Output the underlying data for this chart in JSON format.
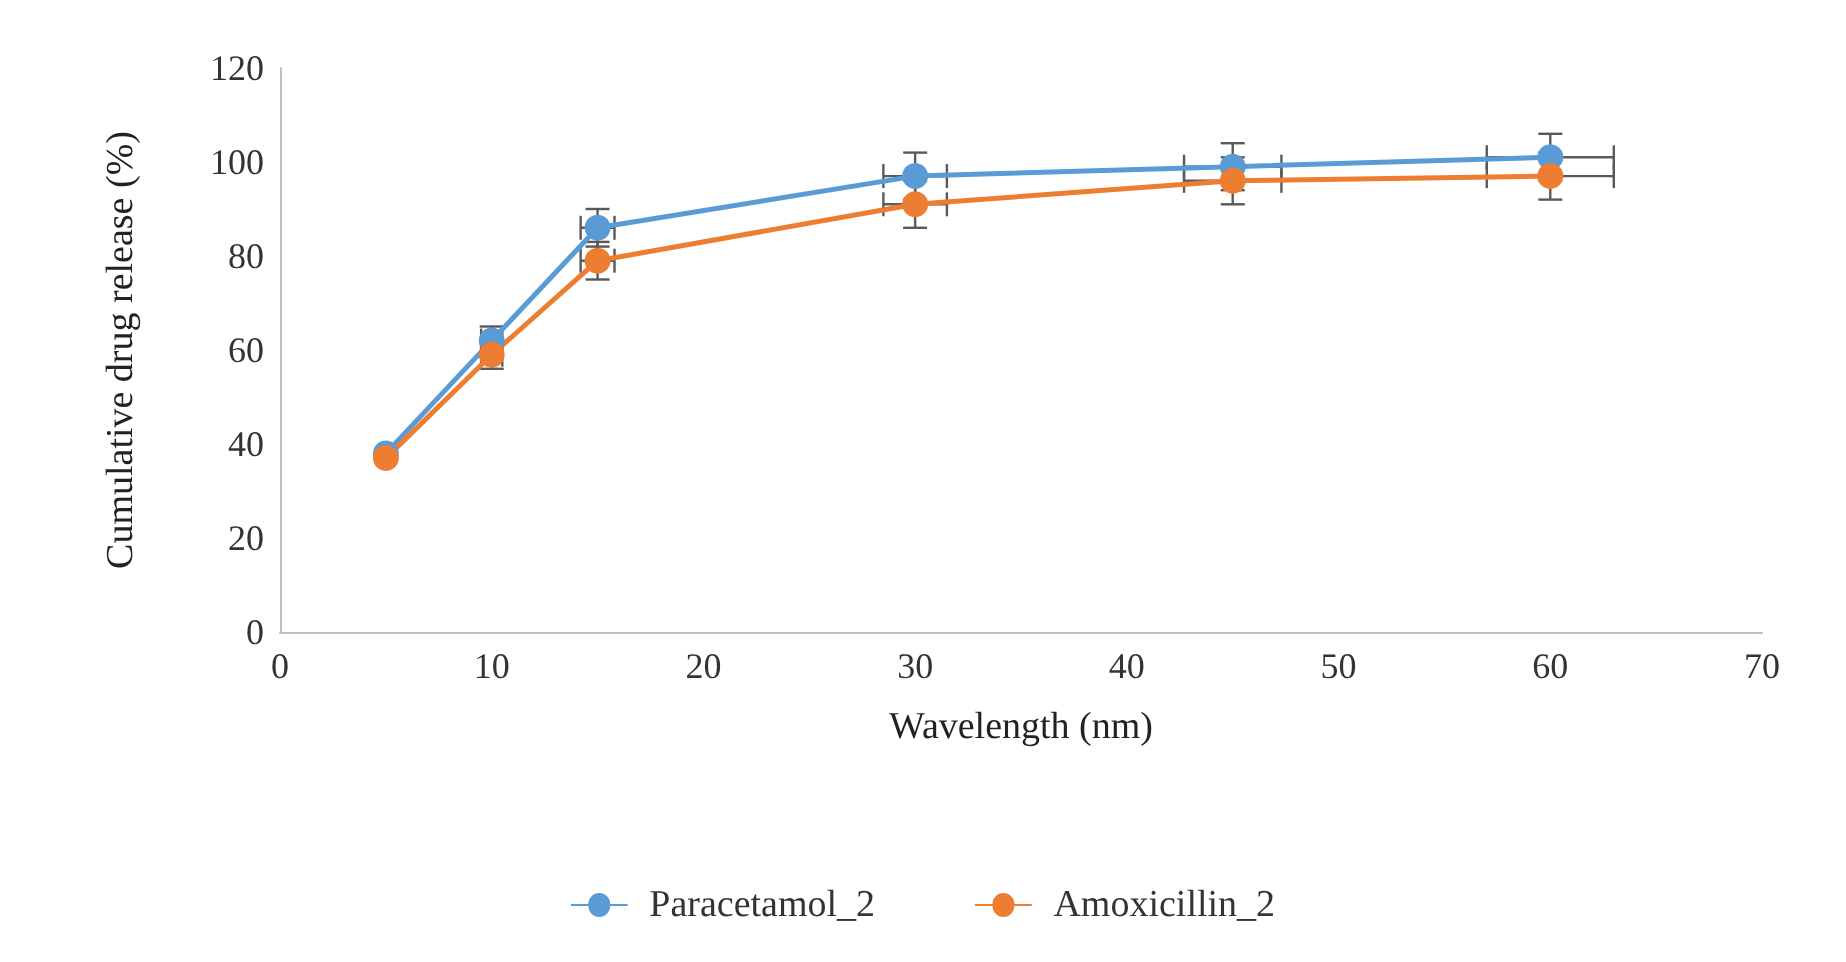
{
  "chart_data": {
    "type": "line",
    "xlabel": "Wavelength (nm)",
    "ylabel": "Cumulative drug release (%)",
    "x": [
      5,
      10,
      15,
      30,
      45,
      60
    ],
    "series": [
      {
        "name": "Paracetamol_2",
        "color": "#5b9bd5",
        "values": [
          38,
          62,
          86,
          97,
          99,
          101
        ],
        "errors": [
          null,
          3,
          4,
          5,
          5,
          5
        ],
        "xerrors": [
          null,
          0.5,
          0.8,
          1.5,
          2.3,
          3
        ]
      },
      {
        "name": "Amoxicillin_2",
        "color": "#ed7d31",
        "values": [
          37,
          59,
          79,
          91,
          96,
          97
        ],
        "errors": [
          null,
          3,
          4,
          5,
          5,
          5
        ],
        "xerrors": [
          null,
          0.5,
          0.8,
          1.5,
          2.3,
          3
        ]
      }
    ],
    "xlim": [
      0,
      70
    ],
    "xticks": [
      0,
      10,
      20,
      30,
      40,
      50,
      60,
      70
    ],
    "ylim": [
      0,
      120
    ],
    "yticks": [
      0,
      20,
      40,
      60,
      80,
      100,
      120
    ],
    "grid": false,
    "legend": "bottom",
    "marker": "circle",
    "line_style": "solid"
  }
}
